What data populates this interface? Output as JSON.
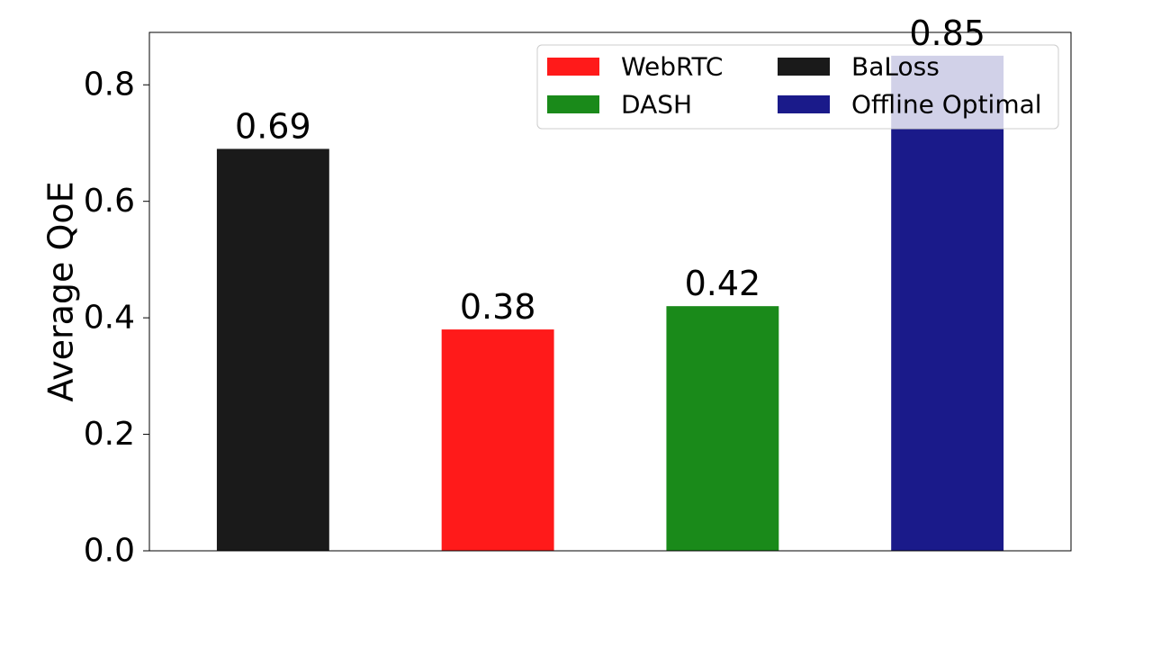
{
  "chart_data": {
    "type": "bar",
    "categories": [
      "BaLoss",
      "WebRTC",
      "DASH",
      "Offline Optimal"
    ],
    "values": [
      0.69,
      0.38,
      0.42,
      0.85
    ],
    "value_labels": [
      "0.69",
      "0.38",
      "0.42",
      "0.85"
    ],
    "colors": [
      "#1a1a1a",
      "#ff1a1a",
      "#1a8a1a",
      "#1a1a8a"
    ],
    "title": "",
    "xlabel": "",
    "ylabel": "Average QoE",
    "ylim": [
      0,
      0.89
    ],
    "yticks": [
      0.0,
      0.2,
      0.4,
      0.6,
      0.8
    ],
    "ytick_labels": [
      "0.0",
      "0.2",
      "0.4",
      "0.6",
      "0.8"
    ],
    "show_xtick_labels": false,
    "grid": false,
    "legend": {
      "position": "top-right",
      "entries": [
        {
          "label": "WebRTC",
          "color": "#ff1a1a"
        },
        {
          "label": "DASH",
          "color": "#1a8a1a"
        },
        {
          "label": "BaLoss",
          "color": "#1a1a1a"
        },
        {
          "label": "Offline Optimal",
          "color": "#1a1a8a"
        }
      ]
    }
  }
}
